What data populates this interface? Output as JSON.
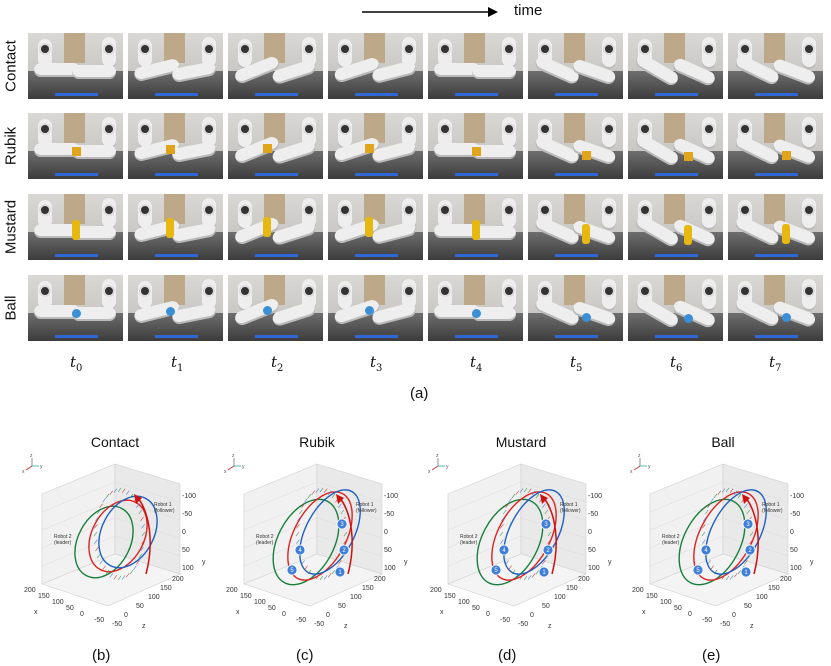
{
  "header": {
    "time_label": "time"
  },
  "rows": [
    {
      "label": "Contact",
      "object": "none",
      "object_color": ""
    },
    {
      "label": "Rubik",
      "object": "cube",
      "object_color": "#e0a51c"
    },
    {
      "label": "Mustard",
      "object": "bottle",
      "object_color": "#e7b910"
    },
    {
      "label": "Ball",
      "object": "ball",
      "object_color": "#3b8fd6"
    }
  ],
  "time_steps": [
    {
      "base": "t",
      "sub": "0"
    },
    {
      "base": "t",
      "sub": "1"
    },
    {
      "base": "t",
      "sub": "2"
    },
    {
      "base": "t",
      "sub": "3"
    },
    {
      "base": "t",
      "sub": "4"
    },
    {
      "base": "t",
      "sub": "5"
    },
    {
      "base": "t",
      "sub": "6"
    },
    {
      "base": "t",
      "sub": "7"
    }
  ],
  "caption_a": "(a)",
  "plots": [
    {
      "title": "Contact",
      "caption": "(b)",
      "markers": [],
      "robot2": "Robot 2\n(leader)",
      "robot1": "Robot 1\n(follower)"
    },
    {
      "title": "Rubik",
      "caption": "(c)",
      "markers": [
        "1",
        "2",
        "3",
        "4",
        "5"
      ],
      "robot2": "Robot 2\n(leader)",
      "robot1": "Robot 1\n(follower)"
    },
    {
      "title": "Mustard",
      "caption": "(d)",
      "markers": [
        "1",
        "2",
        "3",
        "4",
        "5"
      ],
      "robot2": "Robot 2\n(leader)",
      "robot1": "Robot 1\n(follower)"
    },
    {
      "title": "Ball",
      "caption": "(e)",
      "markers": [
        "1",
        "2",
        "3",
        "4",
        "5"
      ],
      "robot2": "Robot 2\n(leader)",
      "robot1": "Robot 1\n(follower)"
    }
  ],
  "axes": {
    "x_label": "x",
    "z_label": "z",
    "y_label": "y",
    "x_ticks": [
      "200",
      "150",
      "100",
      "50",
      "0",
      "-50"
    ],
    "z_ticks": [
      "-50",
      "0",
      "50",
      "100",
      "150",
      "200"
    ],
    "y_ticks": [
      "-100",
      "-50",
      "0",
      "50",
      "100"
    ],
    "gizmo": {
      "x": "x",
      "y": "y",
      "z": "z"
    }
  }
}
